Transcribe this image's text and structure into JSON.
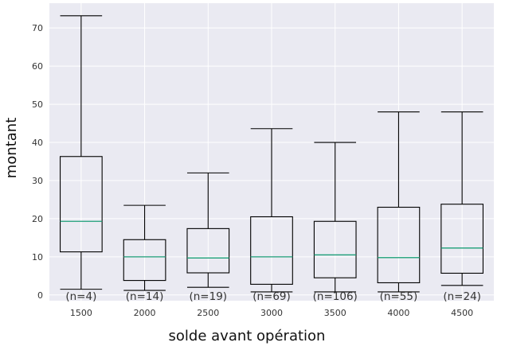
{
  "chart_data": {
    "type": "boxplot",
    "title": "",
    "xlabel": "solde avant opération",
    "ylabel": "montant",
    "categories": [
      "1500",
      "2000",
      "2500",
      "3000",
      "3500",
      "4000",
      "4500"
    ],
    "count_labels": [
      "(n=4)",
      "(n=14)",
      "(n=19)",
      "(n=69)",
      "(n=106)",
      "(n=55)",
      "(n=24)"
    ],
    "boxes": [
      {
        "whisker_low": 1.5,
        "q1": 11.3,
        "median": 19.3,
        "q3": 36.3,
        "whisker_high": 73.2
      },
      {
        "whisker_low": 1.2,
        "q1": 3.8,
        "median": 10.0,
        "q3": 14.5,
        "whisker_high": 23.5
      },
      {
        "whisker_low": 2.0,
        "q1": 5.8,
        "median": 9.7,
        "q3": 17.4,
        "whisker_high": 32.0
      },
      {
        "whisker_low": 0.8,
        "q1": 2.8,
        "median": 10.0,
        "q3": 20.5,
        "whisker_high": 43.6
      },
      {
        "whisker_low": 0.8,
        "q1": 4.5,
        "median": 10.5,
        "q3": 19.3,
        "whisker_high": 40.0
      },
      {
        "whisker_low": 0.8,
        "q1": 3.2,
        "median": 9.8,
        "q3": 23.0,
        "whisker_high": 48.0
      },
      {
        "whisker_low": 2.5,
        "q1": 5.7,
        "median": 12.3,
        "q3": 23.8,
        "whisker_high": 48.0
      }
    ],
    "yticks": [
      0,
      10,
      20,
      30,
      40,
      50,
      60,
      70
    ],
    "ylim": [
      -1.5,
      76.5
    ],
    "grid": true,
    "colors": {
      "background": "#eaeaf2",
      "grid": "#ffffff",
      "box": "#000000",
      "median": "#1b9e77"
    }
  }
}
